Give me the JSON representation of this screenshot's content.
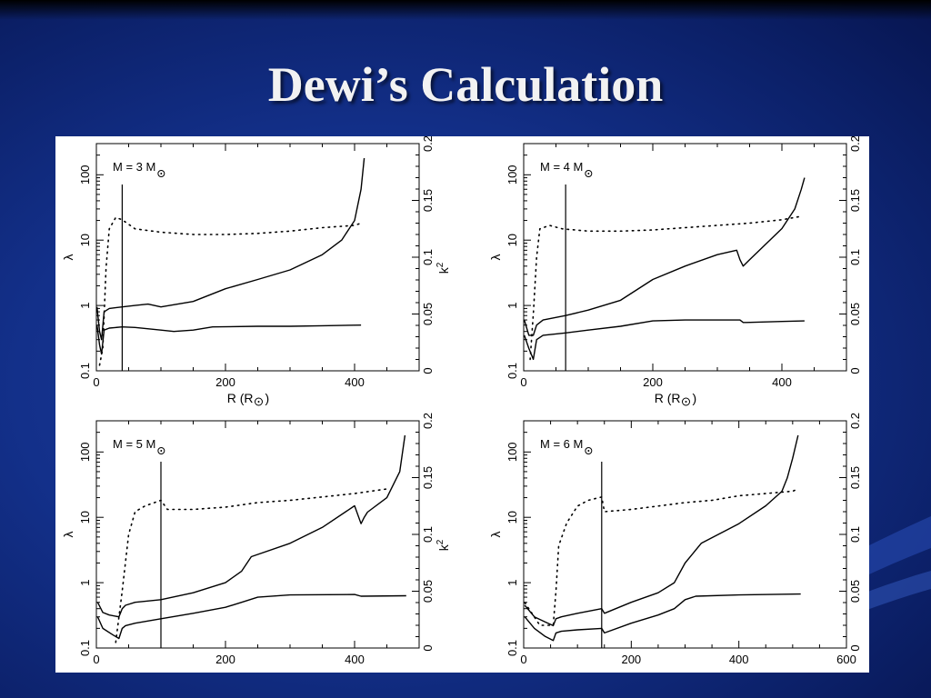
{
  "slide": {
    "title": "Dewi’s Calculation"
  },
  "chart_data": [
    {
      "type": "line",
      "panel": "M = 3 M☉",
      "annotation": {
        "prefix": "M = 3 M"
      },
      "xlabel": {
        "prefix": "R (R"
      },
      "ylabel": "λ",
      "y2label": "k",
      "xlim": [
        0,
        500
      ],
      "ylim": [
        0.1,
        300
      ],
      "y2lim": [
        0,
        0.2
      ],
      "yscale": "log",
      "x_ticks": [
        "0",
        "200",
        "400"
      ],
      "y_ticks": [
        "0.1",
        "1",
        "10",
        "100"
      ],
      "y2_ticks": [
        "0",
        "0.05",
        "0.1",
        "0.15",
        "0.2"
      ],
      "vline": 40,
      "series": [
        {
          "style": "solid",
          "axis": "y",
          "x": [
            1,
            5,
            8,
            12,
            20,
            40,
            60,
            80,
            100,
            150,
            200,
            250,
            300,
            350,
            380,
            400,
            410,
            415
          ],
          "y": [
            0.95,
            0.4,
            0.3,
            0.8,
            0.9,
            0.95,
            1.0,
            1.05,
            0.95,
            1.15,
            1.8,
            2.5,
            3.5,
            6.0,
            10.0,
            20.0,
            60.0,
            180.0
          ]
        },
        {
          "style": "solid",
          "axis": "y",
          "x": [
            1,
            5,
            8,
            12,
            20,
            40,
            60,
            100,
            120,
            150,
            180,
            250,
            300,
            350,
            410
          ],
          "y": [
            0.5,
            0.25,
            0.18,
            0.42,
            0.45,
            0.47,
            0.46,
            0.42,
            0.4,
            0.42,
            0.47,
            0.48,
            0.48,
            0.49,
            0.5
          ]
        },
        {
          "style": "dotted",
          "axis": "y2",
          "x": [
            5,
            10,
            15,
            20,
            30,
            40,
            60,
            100,
            150,
            200,
            250,
            300,
            350,
            400,
            410
          ],
          "y": [
            0.005,
            0.02,
            0.09,
            0.125,
            0.135,
            0.133,
            0.125,
            0.122,
            0.12,
            0.12,
            0.121,
            0.123,
            0.126,
            0.128,
            0.13
          ]
        }
      ]
    },
    {
      "type": "line",
      "panel": "M = 4 M☉",
      "annotation": {
        "prefix": "M = 4 M"
      },
      "xlabel": {
        "prefix": "R (R"
      },
      "ylabel": "λ",
      "y2label": "",
      "xlim": [
        0,
        500
      ],
      "ylim": [
        0.1,
        300
      ],
      "y2lim": [
        0,
        0.2
      ],
      "yscale": "log",
      "x_ticks": [
        "0",
        "200",
        "400"
      ],
      "y_ticks": [
        "0.1",
        "1",
        "10",
        "100"
      ],
      "y2_ticks": [
        "0",
        "0.05",
        "0.1",
        "0.15",
        "0.2"
      ],
      "vline": 65,
      "series": [
        {
          "style": "solid",
          "axis": "y",
          "x": [
            1,
            8,
            15,
            20,
            30,
            65,
            100,
            150,
            200,
            250,
            300,
            330,
            335,
            340,
            350,
            400,
            420,
            430,
            435
          ],
          "y": [
            0.6,
            0.35,
            0.35,
            0.5,
            0.6,
            0.7,
            0.85,
            1.2,
            2.5,
            4.0,
            6.0,
            7.0,
            5.0,
            4.0,
            5.0,
            15.0,
            30.0,
            60.0,
            90.0
          ]
        },
        {
          "style": "solid",
          "axis": "y",
          "x": [
            1,
            8,
            15,
            20,
            30,
            65,
            100,
            150,
            200,
            250,
            300,
            335,
            340,
            345,
            400,
            435
          ],
          "y": [
            0.35,
            0.22,
            0.15,
            0.3,
            0.35,
            0.38,
            0.42,
            0.48,
            0.58,
            0.6,
            0.6,
            0.6,
            0.55,
            0.55,
            0.57,
            0.58
          ]
        },
        {
          "style": "dotted",
          "axis": "y2",
          "x": [
            10,
            15,
            20,
            25,
            40,
            60,
            100,
            150,
            200,
            250,
            300,
            350,
            400,
            430
          ],
          "y": [
            0.01,
            0.05,
            0.1,
            0.125,
            0.128,
            0.125,
            0.123,
            0.123,
            0.124,
            0.126,
            0.128,
            0.13,
            0.133,
            0.136
          ]
        }
      ]
    },
    {
      "type": "line",
      "panel": "M = 5 M☉",
      "annotation": {
        "prefix": "M = 5 M"
      },
      "xlabel": {
        "prefix": ""
      },
      "ylabel": "λ",
      "y2label": "k",
      "xlim": [
        0,
        500
      ],
      "ylim": [
        0.1,
        300
      ],
      "y2lim": [
        0,
        0.2
      ],
      "yscale": "log",
      "x_ticks": [
        "0",
        "200",
        "400"
      ],
      "y_ticks": [
        "0.1",
        "1",
        "10",
        "100"
      ],
      "y2_ticks": [
        "0",
        "0.05",
        "0.1",
        "0.15",
        "0.2"
      ],
      "vline": 100,
      "series": [
        {
          "style": "solid",
          "axis": "y",
          "x": [
            2,
            10,
            20,
            35,
            40,
            45,
            60,
            100,
            150,
            200,
            225,
            240,
            300,
            350,
            400,
            410,
            415,
            420,
            450,
            470,
            478
          ],
          "y": [
            0.5,
            0.35,
            0.32,
            0.3,
            0.4,
            0.45,
            0.5,
            0.55,
            0.7,
            1.0,
            1.5,
            2.5,
            4.0,
            7.0,
            15.0,
            8.0,
            10.0,
            12.0,
            20.0,
            50.0,
            180.0
          ]
        },
        {
          "style": "solid",
          "axis": "y",
          "x": [
            2,
            10,
            25,
            35,
            40,
            45,
            60,
            100,
            150,
            200,
            225,
            250,
            300,
            400,
            410,
            480
          ],
          "y": [
            0.3,
            0.2,
            0.16,
            0.14,
            0.2,
            0.22,
            0.24,
            0.28,
            0.34,
            0.42,
            0.5,
            0.6,
            0.65,
            0.66,
            0.62,
            0.63
          ]
        },
        {
          "style": "dotted",
          "axis": "y2",
          "x": [
            30,
            40,
            50,
            60,
            75,
            90,
            100,
            110,
            150,
            200,
            250,
            300,
            350,
            400,
            450
          ],
          "y": [
            0.005,
            0.05,
            0.1,
            0.12,
            0.125,
            0.128,
            0.13,
            0.122,
            0.122,
            0.124,
            0.128,
            0.13,
            0.133,
            0.136,
            0.14
          ]
        }
      ]
    },
    {
      "type": "line",
      "panel": "M = 6 M☉",
      "annotation": {
        "prefix": "M = 6 M"
      },
      "xlabel": {
        "prefix": ""
      },
      "ylabel": "λ",
      "y2label": "",
      "xlim": [
        0,
        600
      ],
      "ylim": [
        0.1,
        300
      ],
      "y2lim": [
        0,
        0.2
      ],
      "yscale": "log",
      "x_ticks": [
        "0",
        "200",
        "400",
        "600"
      ],
      "y_ticks": [
        "0.1",
        "1",
        "10",
        "100"
      ],
      "y2_ticks": [
        "0",
        "0.05",
        "0.1",
        "0.15",
        "0.2"
      ],
      "vline": 145,
      "series": [
        {
          "style": "solid",
          "axis": "y",
          "x": [
            2,
            20,
            40,
            55,
            60,
            70,
            100,
            145,
            150,
            200,
            250,
            280,
            300,
            330,
            400,
            450,
            480,
            490,
            500,
            510
          ],
          "y": [
            0.45,
            0.3,
            0.25,
            0.22,
            0.28,
            0.3,
            0.34,
            0.4,
            0.34,
            0.5,
            0.7,
            1.0,
            2.0,
            4.0,
            8.0,
            15.0,
            25.0,
            40.0,
            80.0,
            180.0
          ]
        },
        {
          "style": "solid",
          "axis": "y",
          "x": [
            2,
            20,
            40,
            55,
            60,
            70,
            100,
            145,
            150,
            200,
            250,
            280,
            300,
            320,
            400,
            515
          ],
          "y": [
            0.3,
            0.2,
            0.15,
            0.13,
            0.17,
            0.18,
            0.19,
            0.2,
            0.17,
            0.24,
            0.32,
            0.4,
            0.55,
            0.62,
            0.65,
            0.67
          ]
        },
        {
          "style": "dotted",
          "axis": "y2",
          "x": [
            2,
            30,
            55,
            60,
            65,
            80,
            100,
            120,
            145,
            150,
            200,
            250,
            300,
            350,
            400,
            450,
            500,
            510
          ],
          "y": [
            0.04,
            0.02,
            0.02,
            0.05,
            0.09,
            0.11,
            0.125,
            0.13,
            0.133,
            0.12,
            0.122,
            0.125,
            0.128,
            0.13,
            0.134,
            0.136,
            0.138,
            0.14
          ]
        }
      ]
    }
  ]
}
